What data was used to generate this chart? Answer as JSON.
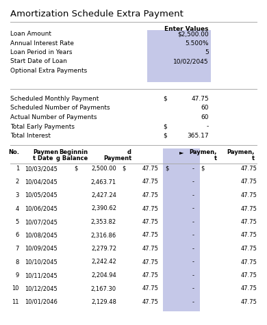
{
  "title": "Amortization Schedule Extra Payment",
  "s1_header": "Enter Values",
  "s1_rows": [
    [
      "Loan Amount",
      "$2,500.00"
    ],
    [
      "Annual Interest Rate",
      "5.500%"
    ],
    [
      "Loan Period in Years",
      "5"
    ],
    [
      "Start Date of Loan",
      "10/02/2045"
    ],
    [
      "Optional Extra Payments",
      ""
    ]
  ],
  "s2_rows": [
    [
      "Scheduled Monthly Payment",
      "$",
      "47.75"
    ],
    [
      "Scheduled Number of Payments",
      "",
      "60"
    ],
    [
      "Actual Number of Payments",
      "",
      "60"
    ],
    [
      "Total Early Payments",
      "$",
      "-"
    ],
    [
      "Total Interest",
      "$",
      "365.17"
    ]
  ],
  "tbl_rows": [
    [
      "1",
      "10/03/2045",
      "$",
      "2,500.00",
      "$",
      "47.75",
      "$",
      "-",
      "$",
      "47.75"
    ],
    [
      "2",
      "10/04/2045",
      "",
      "2,463.71",
      "",
      "47.75",
      "",
      "-",
      "",
      "47.75"
    ],
    [
      "3",
      "10/05/2045",
      "",
      "2,427.24",
      "",
      "47.75",
      "",
      "-",
      "",
      "47.75"
    ],
    [
      "4",
      "10/06/2045",
      "",
      "2,390.62",
      "",
      "47.75",
      "",
      "-",
      "",
      "47.75"
    ],
    [
      "5",
      "10/07/2045",
      "",
      "2,353.82",
      "",
      "47.75",
      "",
      "-",
      "",
      "47.75"
    ],
    [
      "6",
      "10/08/2045",
      "",
      "2,316.86",
      "",
      "47.75",
      "",
      "-",
      "",
      "47.75"
    ],
    [
      "7",
      "10/09/2045",
      "",
      "2,279.72",
      "",
      "47.75",
      "",
      "-",
      "",
      "47.75"
    ],
    [
      "8",
      "10/10/2045",
      "",
      "2,242.42",
      "",
      "47.75",
      "",
      "-",
      "",
      "47.75"
    ],
    [
      "9",
      "10/11/2045",
      "",
      "2,204.94",
      "",
      "47.75",
      "",
      "-",
      "",
      "47.75"
    ],
    [
      "10",
      "10/12/2045",
      "",
      "2,167.30",
      "",
      "47.75",
      "",
      "-",
      "",
      "47.75"
    ],
    [
      "11",
      "10/01/2046",
      "",
      "2,129.48",
      "",
      "47.75",
      "",
      "-",
      "",
      "47.75"
    ]
  ],
  "highlight_color": "#c5c8e8",
  "bg_color": "#ffffff",
  "text_color": "#000000",
  "line_color": "#aaaaaa",
  "fs_title": 9.5,
  "fs_body": 6.5,
  "fs_table": 6.0
}
